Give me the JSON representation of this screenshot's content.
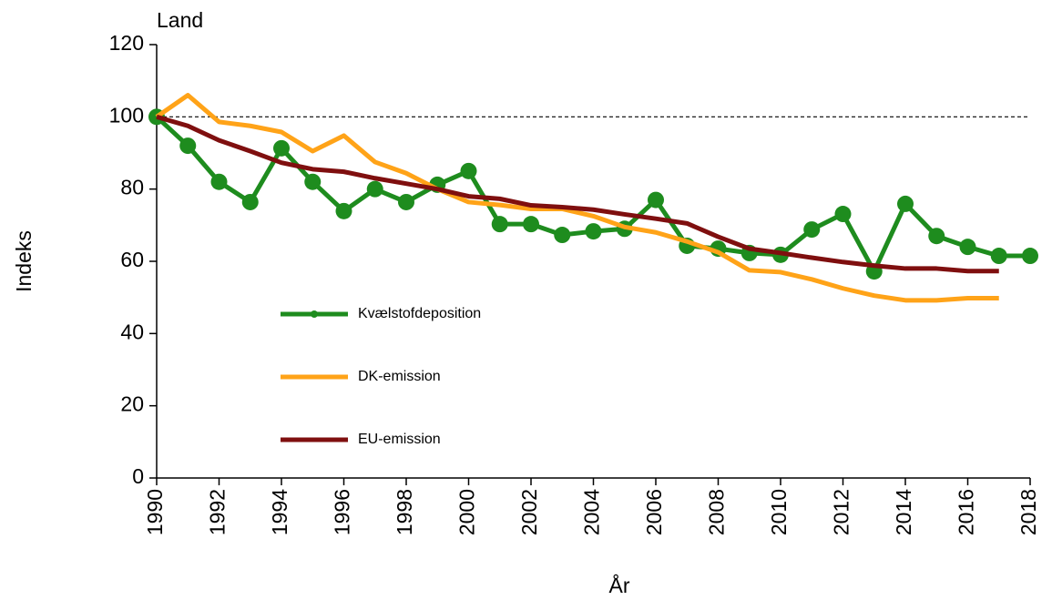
{
  "chart_data": {
    "type": "line",
    "title": "Land",
    "y_label": "Indeks",
    "x_label": "År",
    "x": [
      1990,
      1991,
      1992,
      1993,
      1994,
      1995,
      1996,
      1997,
      1998,
      1999,
      2000,
      2001,
      2002,
      2003,
      2004,
      2005,
      2006,
      2007,
      2008,
      2009,
      2010,
      2011,
      2012,
      2013,
      2014,
      2015,
      2016,
      2017,
      2018
    ],
    "series": [
      {
        "name": "Kvælstofdeposition",
        "color": "#1e8c1e",
        "markers": true,
        "values": [
          100,
          92,
          82,
          76.4,
          91.3,
          82,
          73.9,
          80,
          76.4,
          81.2,
          85,
          70.3,
          70.3,
          67.3,
          68.3,
          69,
          77,
          64.3,
          63.5,
          62.3,
          61.8,
          68.8,
          73.1,
          57.2,
          75.9,
          67,
          64,
          61.5,
          61.5
        ]
      },
      {
        "name": "DK-emission",
        "color": "#ffa318",
        "markers": false,
        "values": [
          100,
          106,
          98.6,
          97.5,
          95.8,
          90.5,
          94.8,
          87.5,
          84.4,
          80,
          76.4,
          75.6,
          74.5,
          74.5,
          72.5,
          69.5,
          68,
          65.5,
          62.5,
          57.5,
          57,
          55,
          52.5,
          50.5,
          49.2,
          49.2,
          49.8,
          49.8,
          null
        ]
      },
      {
        "name": "EU-emission",
        "color": "#7f0f0f",
        "markers": false,
        "values": [
          100,
          97.5,
          93.5,
          90.5,
          87.3,
          85.5,
          84.8,
          83,
          81.5,
          80,
          78,
          77.3,
          75.5,
          75,
          74.3,
          73,
          71.8,
          70.5,
          66.8,
          63.5,
          62.3,
          61,
          59.8,
          58.8,
          58,
          58,
          57.3,
          57.3,
          null
        ]
      }
    ],
    "reference_line": 100,
    "xlim": [
      1990,
      2018
    ],
    "xticks": [
      1990,
      1992,
      1994,
      1996,
      1998,
      2000,
      2002,
      2004,
      2006,
      2008,
      2010,
      2012,
      2014,
      2016,
      2018
    ],
    "ylim": [
      0,
      120
    ],
    "yticks": [
      0,
      20,
      40,
      60,
      80,
      100,
      120
    ],
    "grid": false,
    "legend": "left"
  }
}
